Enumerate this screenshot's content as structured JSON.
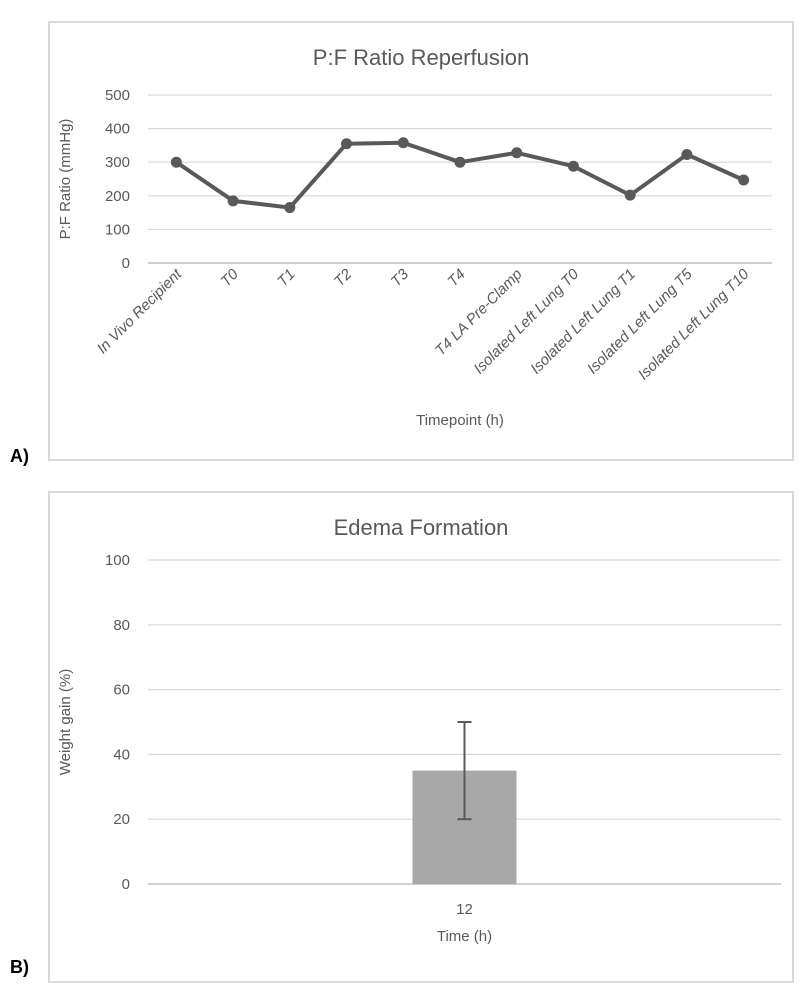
{
  "panels": [
    {
      "label": "A)"
    },
    {
      "label": "B)"
    }
  ],
  "colors": {
    "text": "#595959",
    "gridline": "#d9d9d9",
    "axis_line": "#bfbfbf",
    "line": "#595959",
    "marker": "#595959",
    "bar": "#a8a8a8",
    "error_bar": "#595959",
    "panel_border": "#d9d9d9"
  },
  "chart_data": [
    {
      "type": "line",
      "title": "P:F Ratio Reperfusion",
      "xlabel": "Timepoint (h)",
      "ylabel": "P:F Ratio (mmHg)",
      "ylim": [
        0,
        500
      ],
      "ytick_step": 100,
      "grid": true,
      "legend": "none",
      "categories": [
        "In Vivo Recipient",
        "T0",
        "T1",
        "T2",
        "T3",
        "T4",
        "T4 LA Pre-Clamp",
        "Isolated Left Lung T0",
        "Isolated Left Lung T1",
        "Isolated Left Lung T5",
        "Isolated Left Lung T10"
      ],
      "values": [
        300,
        185,
        165,
        355,
        358,
        300,
        328,
        288,
        202,
        323,
        247
      ]
    },
    {
      "type": "bar",
      "title": "Edema Formation",
      "xlabel": "Time (h)",
      "ylabel": "Weight gain (%)",
      "ylim": [
        0,
        100
      ],
      "ytick_step": 20,
      "grid": true,
      "legend": "none",
      "categories": [
        "12"
      ],
      "values": [
        35
      ],
      "error_bars": [
        {
          "low": 20,
          "high": 50
        }
      ]
    }
  ]
}
